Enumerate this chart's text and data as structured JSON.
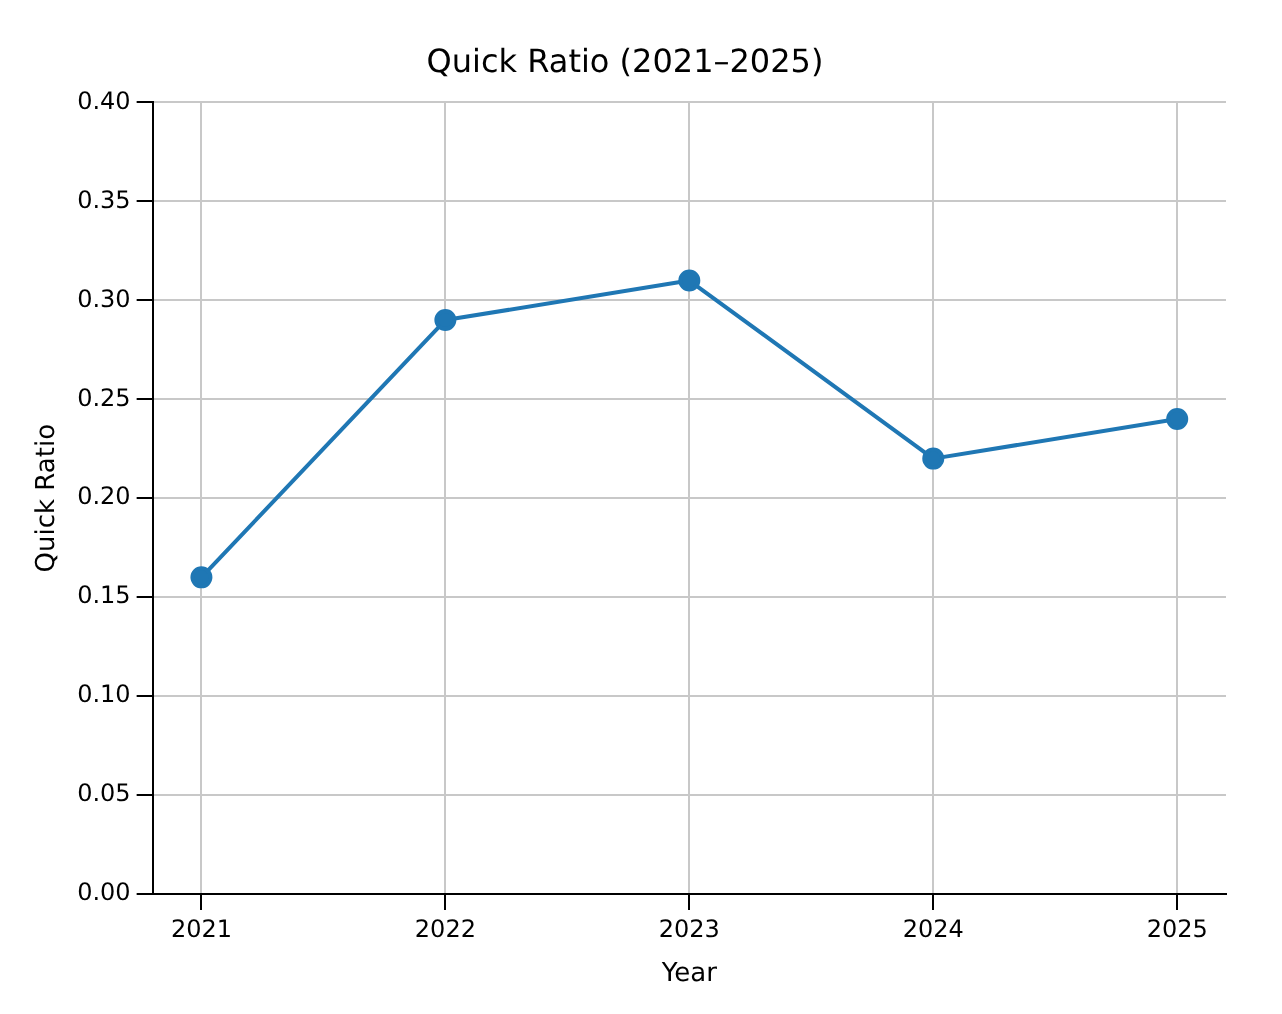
{
  "chart_data": {
    "type": "line",
    "title": "Quick Ratio (2021–2025)",
    "xlabel": "Year",
    "ylabel": "Quick Ratio",
    "x": [
      2021,
      2022,
      2023,
      2024,
      2025
    ],
    "series": [
      {
        "color": "#1f77b4",
        "values": [
          0.16,
          0.29,
          0.31,
          0.22,
          0.24
        ]
      }
    ],
    "xlim": [
      2020.8,
      2025.2
    ],
    "xticks": [
      2021,
      2022,
      2023,
      2024,
      2025
    ],
    "ylim": [
      0,
      0.4
    ],
    "yticks": [
      {
        "value": 0,
        "label": "0.00"
      },
      {
        "value": 0.05,
        "label": "0.05"
      },
      {
        "value": 0.1,
        "label": "0.10"
      },
      {
        "value": 0.15,
        "label": "0.15"
      },
      {
        "value": 0.2,
        "label": "0.20"
      },
      {
        "value": 0.25,
        "label": "0.25"
      },
      {
        "value": 0.3,
        "label": "0.30"
      },
      {
        "value": 0.35,
        "label": "0.35"
      },
      {
        "value": 0.4,
        "label": "0.40"
      }
    ],
    "grid": true,
    "marker": "circle"
  }
}
